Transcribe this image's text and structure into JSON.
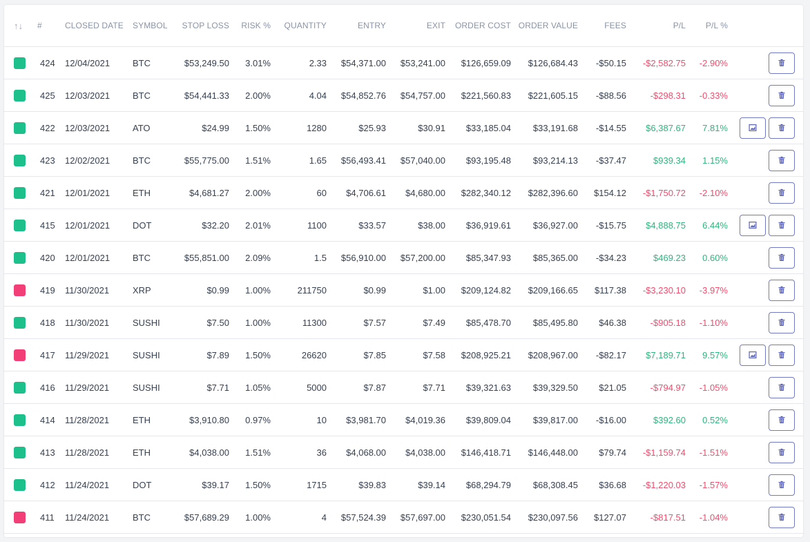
{
  "colors": {
    "green": "#1dbf8a",
    "red": "#f23f78",
    "positive_text": "#2fb57e",
    "negative_text": "#ef4d6e",
    "button_border": "#7279c6"
  },
  "headers": {
    "sort_icon": "↑↓",
    "id": "#",
    "closed_date": "CLOSED DATE",
    "symbol": "SYMBOL",
    "stop_loss": "STOP LOSS",
    "risk": "RISK %",
    "quantity": "QUANTITY",
    "entry": "ENTRY",
    "exit": "EXIT",
    "order_cost": "ORDER COST",
    "order_value": "ORDER VALUE",
    "fees": "FEES",
    "pl": "P/L",
    "pl_pct": "P/L %"
  },
  "rows": [
    {
      "color": "green",
      "id": "424",
      "date": "12/04/2021",
      "symbol": "BTC",
      "stop": "$53,249.50",
      "risk": "3.01%",
      "qty": "2.33",
      "entry": "$54,371.00",
      "exit": "$53,241.00",
      "cost": "$126,659.09",
      "value": "$126,684.43",
      "fees": "-$50.15",
      "pl": "-$2,582.75",
      "plp": "-2.90%",
      "sign": "neg",
      "chart": false,
      "delete_icon": "trash-icon"
    },
    {
      "color": "green",
      "id": "425",
      "date": "12/03/2021",
      "symbol": "BTC",
      "stop": "$54,441.33",
      "risk": "2.00%",
      "qty": "4.04",
      "entry": "$54,852.76",
      "exit": "$54,757.00",
      "cost": "$221,560.83",
      "value": "$221,605.15",
      "fees": "-$88.56",
      "pl": "-$298.31",
      "plp": "-0.33%",
      "sign": "neg",
      "chart": false,
      "delete_icon": "trash-icon"
    },
    {
      "color": "green",
      "id": "422",
      "date": "12/03/2021",
      "symbol": "ATO",
      "stop": "$24.99",
      "risk": "1.50%",
      "qty": "1280",
      "entry": "$25.93",
      "exit": "$30.91",
      "cost": "$33,185.04",
      "value": "$33,191.68",
      "fees": "-$14.55",
      "pl": "$6,387.67",
      "plp": "7.81%",
      "sign": "pos",
      "chart": true,
      "delete_icon": "trash-icon"
    },
    {
      "color": "green",
      "id": "423",
      "date": "12/02/2021",
      "symbol": "BTC",
      "stop": "$55,775.00",
      "risk": "1.51%",
      "qty": "1.65",
      "entry": "$56,493.41",
      "exit": "$57,040.00",
      "cost": "$93,195.48",
      "value": "$93,214.13",
      "fees": "-$37.47",
      "pl": "$939.34",
      "plp": "1.15%",
      "sign": "pos",
      "chart": false,
      "delete_icon": "trash-icon"
    },
    {
      "color": "green",
      "id": "421",
      "date": "12/01/2021",
      "symbol": "ETH",
      "stop": "$4,681.27",
      "risk": "2.00%",
      "qty": "60",
      "entry": "$4,706.61",
      "exit": "$4,680.00",
      "cost": "$282,340.12",
      "value": "$282,396.60",
      "fees": "$154.12",
      "pl": "-$1,750.72",
      "plp": "-2.10%",
      "sign": "neg",
      "chart": false,
      "delete_icon": "trash-icon"
    },
    {
      "color": "green",
      "id": "415",
      "date": "12/01/2021",
      "symbol": "DOT",
      "stop": "$32.20",
      "risk": "2.01%",
      "qty": "1100",
      "entry": "$33.57",
      "exit": "$38.00",
      "cost": "$36,919.61",
      "value": "$36,927.00",
      "fees": "-$15.75",
      "pl": "$4,888.75",
      "plp": "6.44%",
      "sign": "pos",
      "chart": true,
      "delete_icon": "trash-icon"
    },
    {
      "color": "green",
      "id": "420",
      "date": "12/01/2021",
      "symbol": "BTC",
      "stop": "$55,851.00",
      "risk": "2.09%",
      "qty": "1.5",
      "entry": "$56,910.00",
      "exit": "$57,200.00",
      "cost": "$85,347.93",
      "value": "$85,365.00",
      "fees": "-$34.23",
      "pl": "$469.23",
      "plp": "0.60%",
      "sign": "pos",
      "chart": false,
      "delete_icon": "trash-icon"
    },
    {
      "color": "red",
      "id": "419",
      "date": "11/30/2021",
      "symbol": "XRP",
      "stop": "$0.99",
      "risk": "1.00%",
      "qty": "211750",
      "entry": "$0.99",
      "exit": "$1.00",
      "cost": "$209,124.82",
      "value": "$209,166.65",
      "fees": "$117.38",
      "pl": "-$3,230.10",
      "plp": "-3.97%",
      "sign": "neg",
      "chart": false,
      "delete_icon": "trash-icon"
    },
    {
      "color": "green",
      "id": "418",
      "date": "11/30/2021",
      "symbol": "SUSHI",
      "stop": "$7.50",
      "risk": "1.00%",
      "qty": "11300",
      "entry": "$7.57",
      "exit": "$7.49",
      "cost": "$85,478.70",
      "value": "$85,495.80",
      "fees": "$46.38",
      "pl": "-$905.18",
      "plp": "-1.10%",
      "sign": "neg",
      "chart": false,
      "delete_icon": "trash-icon"
    },
    {
      "color": "red",
      "id": "417",
      "date": "11/29/2021",
      "symbol": "SUSHI",
      "stop": "$7.89",
      "risk": "1.50%",
      "qty": "26620",
      "entry": "$7.85",
      "exit": "$7.58",
      "cost": "$208,925.21",
      "value": "$208,967.00",
      "fees": "-$82.17",
      "pl": "$7,189.71",
      "plp": "9.57%",
      "sign": "pos",
      "chart": true,
      "delete_icon": "trash-icon"
    },
    {
      "color": "green",
      "id": "416",
      "date": "11/29/2021",
      "symbol": "SUSHI",
      "stop": "$7.71",
      "risk": "1.05%",
      "qty": "5000",
      "entry": "$7.87",
      "exit": "$7.71",
      "cost": "$39,321.63",
      "value": "$39,329.50",
      "fees": "$21.05",
      "pl": "-$794.97",
      "plp": "-1.05%",
      "sign": "neg",
      "chart": false,
      "delete_icon": "trash-icon"
    },
    {
      "color": "green",
      "id": "414",
      "date": "11/28/2021",
      "symbol": "ETH",
      "stop": "$3,910.80",
      "risk": "0.97%",
      "qty": "10",
      "entry": "$3,981.70",
      "exit": "$4,019.36",
      "cost": "$39,809.04",
      "value": "$39,817.00",
      "fees": "-$16.00",
      "pl": "$392.60",
      "plp": "0.52%",
      "sign": "pos",
      "chart": false,
      "delete_icon": "trash-icon"
    },
    {
      "color": "green",
      "id": "413",
      "date": "11/28/2021",
      "symbol": "ETH",
      "stop": "$4,038.00",
      "risk": "1.51%",
      "qty": "36",
      "entry": "$4,068.00",
      "exit": "$4,038.00",
      "cost": "$146,418.71",
      "value": "$146,448.00",
      "fees": "$79.74",
      "pl": "-$1,159.74",
      "plp": "-1.51%",
      "sign": "neg",
      "chart": false,
      "delete_icon": "trash-icon"
    },
    {
      "color": "green",
      "id": "412",
      "date": "11/24/2021",
      "symbol": "DOT",
      "stop": "$39.17",
      "risk": "1.50%",
      "qty": "1715",
      "entry": "$39.83",
      "exit": "$39.14",
      "cost": "$68,294.79",
      "value": "$68,308.45",
      "fees": "$36.68",
      "pl": "-$1,220.03",
      "plp": "-1.57%",
      "sign": "neg",
      "chart": false,
      "delete_icon": "trash-icon"
    },
    {
      "color": "red",
      "id": "411",
      "date": "11/24/2021",
      "symbol": "BTC",
      "stop": "$57,689.29",
      "risk": "1.00%",
      "qty": "4",
      "entry": "$57,524.39",
      "exit": "$57,697.00",
      "cost": "$230,051.54",
      "value": "$230,097.56",
      "fees": "$127.07",
      "pl": "-$817.51",
      "plp": "-1.04%",
      "sign": "neg",
      "chart": false,
      "delete_icon": "trash-icon"
    }
  ]
}
